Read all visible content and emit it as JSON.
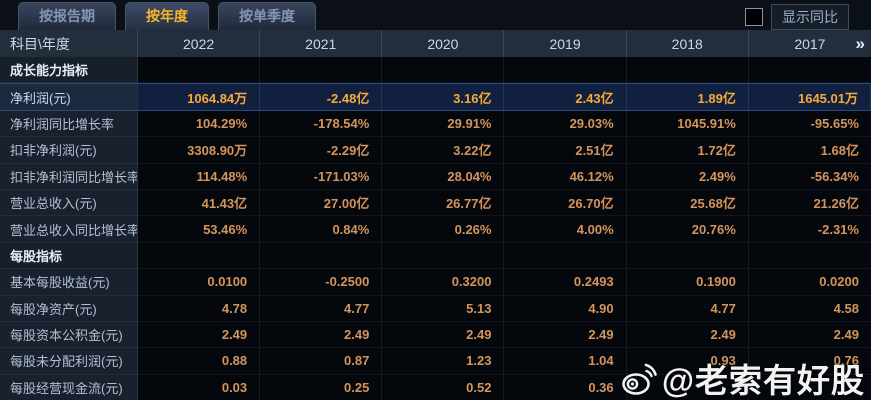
{
  "tabs": [
    {
      "label": "按报告期",
      "active": false
    },
    {
      "label": "按年度",
      "active": true
    },
    {
      "label": "按单季度",
      "active": false
    }
  ],
  "controls": {
    "show_yoy_label": "显示同比",
    "checkbox_checked": false
  },
  "colors": {
    "accent_gold": "#f7b52c",
    "value_orange": "#d4945c",
    "highlight_value_gold": "#f5ab36",
    "highlight_row_bg": "#122040",
    "header_bg": "#232e3d",
    "label_col_bg": "#18212d",
    "data_cell_bg": "#04070c"
  },
  "table": {
    "corner_label": "科目\\年度",
    "years": [
      "2022",
      "2021",
      "2020",
      "2019",
      "2018",
      "2017"
    ],
    "more_icon": "»",
    "rows": [
      {
        "type": "section",
        "label": "成长能力指标",
        "values": [
          "",
          "",
          "",
          "",
          "",
          ""
        ]
      },
      {
        "type": "data",
        "label": "净利润(元)",
        "highlight": true,
        "values": [
          "1064.84万",
          "-2.48亿",
          "3.16亿",
          "2.43亿",
          "1.89亿",
          "1645.01万"
        ]
      },
      {
        "type": "data",
        "label": "净利润同比增长率",
        "values": [
          "104.29%",
          "-178.54%",
          "29.91%",
          "29.03%",
          "1045.91%",
          "-95.65%"
        ]
      },
      {
        "type": "data",
        "label": "扣非净利润(元)",
        "values": [
          "3308.90万",
          "-2.29亿",
          "3.22亿",
          "2.51亿",
          "1.72亿",
          "1.68亿"
        ]
      },
      {
        "type": "data",
        "label": "扣非净利润同比增长率",
        "values": [
          "114.48%",
          "-171.03%",
          "28.04%",
          "46.12%",
          "2.49%",
          "-56.34%"
        ]
      },
      {
        "type": "data",
        "label": "营业总收入(元)",
        "values": [
          "41.43亿",
          "27.00亿",
          "26.77亿",
          "26.70亿",
          "25.68亿",
          "21.26亿"
        ]
      },
      {
        "type": "data",
        "label": "营业总收入同比增长率",
        "values": [
          "53.46%",
          "0.84%",
          "0.26%",
          "4.00%",
          "20.76%",
          "-2.31%"
        ]
      },
      {
        "type": "section",
        "label": "每股指标",
        "values": [
          "",
          "",
          "",
          "",
          "",
          ""
        ]
      },
      {
        "type": "data",
        "label": "基本每股收益(元)",
        "values": [
          "0.0100",
          "-0.2500",
          "0.3200",
          "0.2493",
          "0.1900",
          "0.0200"
        ]
      },
      {
        "type": "data",
        "label": "每股净资产(元)",
        "values": [
          "4.78",
          "4.77",
          "5.13",
          "4.90",
          "4.77",
          "4.58"
        ]
      },
      {
        "type": "data",
        "label": "每股资本公积金(元)",
        "values": [
          "2.49",
          "2.49",
          "2.49",
          "2.49",
          "2.49",
          "2.49"
        ]
      },
      {
        "type": "data",
        "label": "每股未分配利润(元)",
        "values": [
          "0.88",
          "0.87",
          "1.23",
          "1.04",
          "0.93",
          "0.76"
        ]
      },
      {
        "type": "data",
        "label": "每股经营现金流(元)",
        "values": [
          "0.03",
          "0.25",
          "0.52",
          "0.36",
          "",
          ""
        ]
      }
    ]
  },
  "watermark": {
    "text": "@老索有好股",
    "icon": "weibo-icon"
  }
}
